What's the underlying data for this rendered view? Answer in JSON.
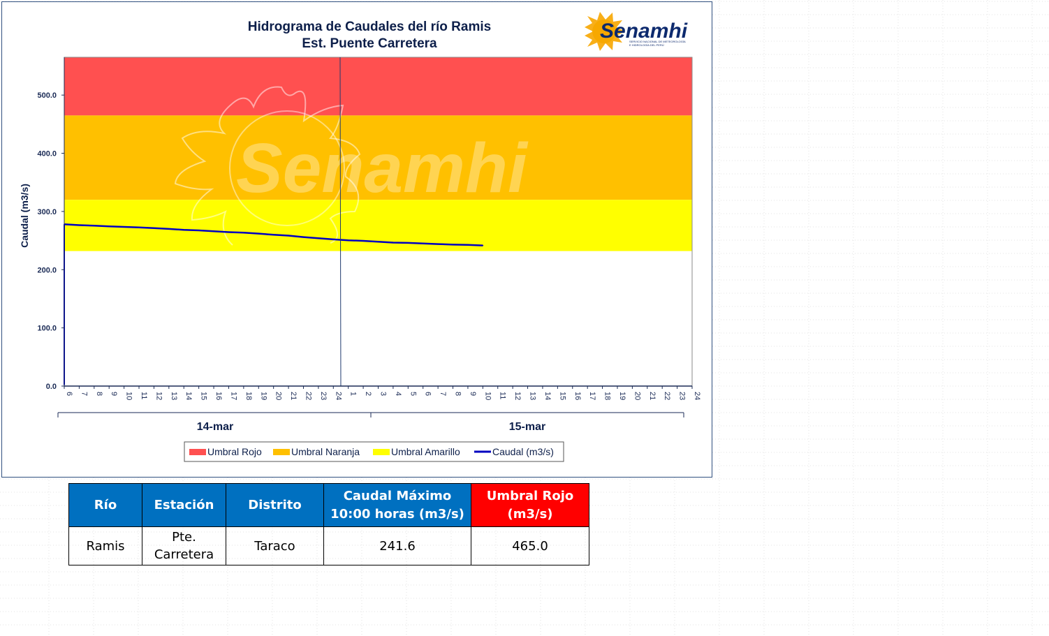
{
  "chart_data": {
    "type": "line",
    "title": "Hidrograma de Caudales del río Ramis",
    "subtitle": "Est. Puente Carretera",
    "ylabel": "Caudal (m3/s)",
    "ylim": [
      0,
      565
    ],
    "yticks": [
      "0.0",
      "100.0",
      "200.0",
      "300.0",
      "400.0",
      "500.0"
    ],
    "ytick_values": [
      0,
      100,
      200,
      300,
      400,
      500
    ],
    "x_hours": [
      "6",
      "7",
      "8",
      "9",
      "10",
      "11",
      "12",
      "13",
      "14",
      "15",
      "16",
      "17",
      "18",
      "19",
      "20",
      "21",
      "22",
      "23",
      "24",
      "1",
      "2",
      "3",
      "4",
      "5",
      "6",
      "7",
      "8",
      "9",
      "10",
      "11",
      "12",
      "13",
      "14",
      "15",
      "16",
      "17",
      "18",
      "19",
      "20",
      "21",
      "22",
      "23",
      "24"
    ],
    "date_groups": [
      "14-mar",
      "15-mar"
    ],
    "thresholds": [
      {
        "name": "Umbral Rojo",
        "from": 465,
        "to": 565,
        "color": "#ff5050"
      },
      {
        "name": "Umbral Naranja",
        "from": 320,
        "to": 465,
        "color": "#ffc000"
      },
      {
        "name": "Umbral Amarillo",
        "from": 232,
        "to": 320,
        "color": "#ffff00"
      }
    ],
    "series": [
      {
        "name": "Caudal (m3/s)",
        "color": "#0000c0",
        "values": [
          278.0,
          276.5,
          275.5,
          274.5,
          273.5,
          272.5,
          271.5,
          270.0,
          268.5,
          267.5,
          266.0,
          264.5,
          263.5,
          262.0,
          260.0,
          258.5,
          256.0,
          254.0,
          252.0,
          250.5,
          249.5,
          248.0,
          246.5,
          246.0,
          245.0,
          244.0,
          243.0,
          242.5,
          241.6
        ]
      }
    ],
    "legend": [
      "Umbral Rojo",
      "Umbral Naranja",
      "Umbral Amarillo",
      "Caudal (m3/s)"
    ],
    "legend_position": "bottom",
    "grid": false,
    "day_separator_after": "24",
    "start_spike_value": 2
  },
  "logo": {
    "name": "Senamhi",
    "tagline_1": "SERVICIO NACIONAL DE METEOROLOGÍA",
    "tagline_2": "E HIDROLOGÍA DEL PERÚ"
  },
  "watermark": "Senamhi",
  "table": {
    "headers": [
      "Río",
      "Estación",
      "Distrito",
      "Caudal Máximo",
      "10:00 horas (m3/s)",
      "Umbral Rojo",
      "(m3/s)"
    ],
    "row": [
      "Ramis",
      "Pte.",
      "Carretera",
      "Taraco",
      "241.6",
      "465.0"
    ]
  },
  "colors": {
    "header_blue": "#0070c0",
    "header_red": "#ff0000",
    "line_blue": "#0000c0",
    "title_navy": "#0d1f4a"
  }
}
